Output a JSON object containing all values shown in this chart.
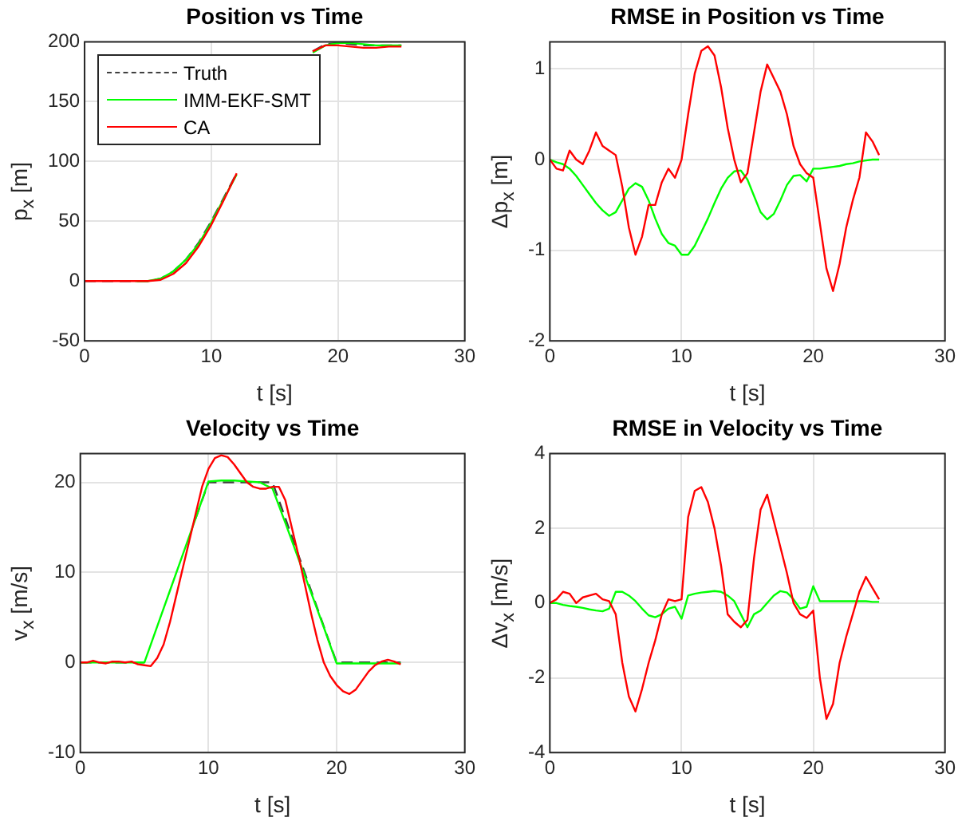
{
  "chart_data": [
    {
      "type": "line",
      "title": "Position vs Time",
      "xlabel": "t [s]",
      "ylabel": "p$_{x}$ [m]",
      "xlim": [
        0,
        30
      ],
      "xticks": [
        0,
        10,
        20,
        30
      ],
      "ylim": [
        -50,
        200
      ],
      "yticks": [
        -50,
        0,
        50,
        100,
        150,
        200
      ],
      "grid": true,
      "legend": "top left",
      "marker": "none",
      "x": [
        0,
        1,
        2,
        3,
        4,
        5,
        6,
        7,
        8,
        9,
        10,
        11,
        12,
        13,
        14,
        15,
        16,
        17,
        18,
        19,
        20,
        21,
        22,
        23,
        24,
        25
      ],
      "series": [
        {
          "name": "Truth",
          "color": "#404040",
          "line_style": "dashed",
          "values": [
            0,
            0,
            0,
            0,
            0,
            0,
            2,
            8,
            18,
            32,
            50,
            70,
            90,
            null,
            null,
            null,
            null,
            null,
            192,
            198,
            199,
            198,
            197,
            197,
            197,
            197
          ]
        },
        {
          "name": "IMM-EKF-SMT",
          "color": "#00ff00",
          "values": [
            null,
            null,
            null,
            null,
            0,
            0,
            2,
            8,
            18,
            31,
            49,
            69,
            89,
            null,
            null,
            null,
            null,
            null,
            191,
            197,
            199,
            199,
            198,
            197,
            197,
            197
          ]
        },
        {
          "name": "CA",
          "color": "#ff0000",
          "values": [
            0,
            0,
            0,
            0,
            0,
            0,
            1,
            6,
            15,
            29,
            47,
            68,
            90,
            null,
            null,
            null,
            null,
            null,
            192,
            197,
            197,
            196,
            195,
            195,
            196,
            196
          ]
        }
      ]
    },
    {
      "type": "line",
      "title": "RMSE in Position vs Time",
      "xlabel": "t [s]",
      "ylabel": "Δp$_{x}$ [m]",
      "xlim": [
        0,
        30
      ],
      "xticks": [
        0,
        10,
        20,
        30
      ],
      "ylim": [
        -2,
        1.3
      ],
      "yticks": [
        -2,
        -1,
        0,
        1
      ],
      "grid": true,
      "marker": "none",
      "x": [
        0,
        0.5,
        1,
        1.5,
        2,
        2.5,
        3,
        3.5,
        4,
        4.5,
        5,
        5.5,
        6,
        6.5,
        7,
        7.5,
        8,
        8.5,
        9,
        9.5,
        10,
        10.5,
        11,
        11.5,
        12,
        12.5,
        13,
        13.5,
        14,
        14.5,
        15,
        15.5,
        16,
        16.5,
        17,
        17.5,
        18,
        18.5,
        19,
        19.5,
        20,
        20.5,
        21,
        21.5,
        22,
        22.5,
        23,
        23.5,
        24,
        24.5,
        25
      ],
      "series": [
        {
          "color": "#00ff00",
          "values": [
            0,
            -0.03,
            -0.05,
            -0.1,
            -0.18,
            -0.28,
            -0.38,
            -0.48,
            -0.56,
            -0.62,
            -0.58,
            -0.45,
            -0.32,
            -0.26,
            -0.3,
            -0.45,
            -0.65,
            -0.82,
            -0.92,
            -0.95,
            -1.05,
            -1.05,
            -0.95,
            -0.8,
            -0.65,
            -0.48,
            -0.32,
            -0.2,
            -0.13,
            -0.12,
            -0.22,
            -0.4,
            -0.58,
            -0.66,
            -0.6,
            -0.45,
            -0.28,
            -0.18,
            -0.17,
            -0.24,
            -0.1,
            -0.1,
            -0.09,
            -0.08,
            -0.07,
            -0.05,
            -0.04,
            -0.02,
            -0.01,
            0,
            0
          ]
        },
        {
          "color": "#ff0000",
          "values": [
            0,
            -0.1,
            -0.12,
            0.1,
            0,
            -0.05,
            0.1,
            0.3,
            0.15,
            0.1,
            0.05,
            -0.3,
            -0.75,
            -1.05,
            -0.85,
            -0.5,
            -0.5,
            -0.25,
            -0.1,
            -0.2,
            0,
            0.5,
            0.95,
            1.2,
            1.25,
            1.15,
            0.8,
            0.35,
            0,
            -0.25,
            -0.15,
            0.3,
            0.75,
            1.05,
            0.9,
            0.75,
            0.5,
            0.15,
            -0.05,
            -0.15,
            -0.2,
            -0.7,
            -1.2,
            -1.45,
            -1.15,
            -0.75,
            -0.45,
            -0.2,
            0.3,
            0.2,
            0.05
          ]
        }
      ]
    },
    {
      "type": "line",
      "title": "Velocity vs Time",
      "xlabel": "t [s]",
      "ylabel": "v$_{x}$ [m/s]",
      "xlim": [
        0,
        30
      ],
      "xticks": [
        0,
        10,
        20,
        30
      ],
      "ylim": [
        -10,
        23.2
      ],
      "yticks": [
        -10,
        0,
        10,
        20
      ],
      "grid": true,
      "marker": "none",
      "x": [
        0,
        1,
        2,
        3,
        4,
        5,
        6,
        7,
        8,
        9,
        10,
        11,
        12,
        13,
        14,
        15,
        16,
        17,
        18,
        19,
        20,
        21,
        22,
        23,
        24,
        25
      ],
      "series": [
        {
          "color": "#404040",
          "line_style": "dashed",
          "values": [
            0,
            0,
            0,
            0,
            0,
            0,
            null,
            null,
            null,
            16,
            20,
            20,
            20,
            20,
            20,
            20,
            16,
            12,
            8,
            4,
            0,
            0,
            0,
            0,
            0,
            0
          ]
        },
        {
          "color": "#00ff00",
          "values": [
            0,
            0,
            0,
            0,
            0,
            0,
            4,
            8,
            12,
            16,
            20.1,
            20.2,
            20.2,
            20.1,
            20,
            19.3,
            15.5,
            11.6,
            7.8,
            3.9,
            -0.1,
            -0.1,
            -0.1,
            -0.1,
            -0.1,
            -0.1
          ]
        },
        {
          "color": "#ff0000",
          "x": [
            0,
            0.5,
            1,
            1.5,
            2,
            2.5,
            3,
            3.5,
            4,
            4.5,
            5,
            5.5,
            6,
            6.5,
            7,
            7.5,
            8,
            8.5,
            9,
            9.5,
            10,
            10.5,
            11,
            11.5,
            12,
            12.5,
            13,
            13.5,
            14,
            14.5,
            15,
            15.5,
            16,
            16.5,
            17,
            17.5,
            18,
            18.5,
            19,
            19.5,
            20,
            20.5,
            21,
            21.5,
            22,
            22.5,
            23,
            23.5,
            24,
            24.5,
            25
          ],
          "values": [
            0,
            0,
            0.2,
            0,
            -0.1,
            0.1,
            0.1,
            0,
            0.1,
            -0.2,
            -0.3,
            -0.4,
            0.5,
            2,
            4.5,
            7.5,
            10.5,
            13.5,
            16.5,
            19.5,
            21.5,
            22.7,
            23,
            22.8,
            22,
            21,
            20,
            19.5,
            19.3,
            19.3,
            19.5,
            19.5,
            18,
            15,
            12,
            8.8,
            5.5,
            2.5,
            0,
            -1.5,
            -2.5,
            -3.2,
            -3.5,
            -3,
            -2,
            -1,
            -0.3,
            0.1,
            0.3,
            0.1,
            -0.2
          ]
        }
      ]
    },
    {
      "type": "line",
      "title": "RMSE in Velocity vs Time",
      "xlabel": "t [s]",
      "ylabel": "Δv$_{x}$ [m/s]",
      "xlim": [
        0,
        30
      ],
      "xticks": [
        0,
        10,
        20,
        30
      ],
      "ylim": [
        -4,
        4
      ],
      "yticks": [
        -4,
        -2,
        0,
        2,
        4
      ],
      "grid": true,
      "marker": "none",
      "x": [
        0,
        0.5,
        1,
        1.5,
        2,
        2.5,
        3,
        3.5,
        4,
        4.5,
        5,
        5.5,
        6,
        6.5,
        7,
        7.5,
        8,
        8.5,
        9,
        9.5,
        10,
        10.5,
        11,
        11.5,
        12,
        12.5,
        13,
        13.5,
        14,
        14.5,
        15,
        15.5,
        16,
        16.5,
        17,
        17.5,
        18,
        18.5,
        19,
        19.5,
        20,
        20.5,
        21,
        21.5,
        22,
        22.5,
        23,
        23.5,
        24,
        24.5,
        25
      ],
      "series": [
        {
          "color": "#00ff00",
          "values": [
            0,
            0,
            -0.05,
            -0.08,
            -0.1,
            -0.13,
            -0.17,
            -0.2,
            -0.22,
            -0.15,
            0.3,
            0.3,
            0.2,
            0.05,
            -0.15,
            -0.33,
            -0.38,
            -0.3,
            -0.15,
            -0.1,
            -0.42,
            0.2,
            0.25,
            0.28,
            0.3,
            0.32,
            0.3,
            0.2,
            0.05,
            -0.3,
            -0.65,
            -0.3,
            -0.2,
            0,
            0.2,
            0.32,
            0.28,
            0.1,
            -0.15,
            -0.1,
            0.45,
            0.05,
            0.05,
            0.05,
            0.05,
            0.05,
            0.05,
            0.05,
            0.05,
            0.03,
            0.03
          ]
        },
        {
          "color": "#ff0000",
          "values": [
            0,
            0.1,
            0.3,
            0.25,
            0,
            0.15,
            0.2,
            0.25,
            0.1,
            0.05,
            -0.3,
            -1.6,
            -2.5,
            -2.9,
            -2.3,
            -1.6,
            -1,
            -0.3,
            0.1,
            0.05,
            0.1,
            2.3,
            3,
            3.1,
            2.7,
            2,
            1,
            -0.3,
            -0.5,
            -0.65,
            -0.45,
            1.2,
            2.5,
            2.9,
            2.2,
            1.5,
            0.8,
            0,
            -0.3,
            -0.4,
            -0.2,
            -2,
            -3.1,
            -2.7,
            -1.6,
            -0.9,
            -0.3,
            0.3,
            0.7,
            0.4,
            0.1
          ]
        }
      ]
    }
  ]
}
